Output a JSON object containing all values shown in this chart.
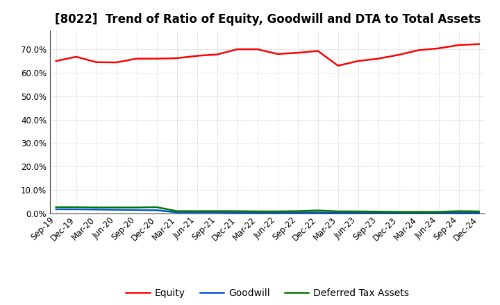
{
  "title": "[8022]  Trend of Ratio of Equity, Goodwill and DTA to Total Assets",
  "x_labels": [
    "Sep-19",
    "Dec-19",
    "Mar-20",
    "Jun-20",
    "Sep-20",
    "Dec-20",
    "Mar-21",
    "Jun-21",
    "Sep-21",
    "Dec-21",
    "Mar-22",
    "Jun-22",
    "Sep-22",
    "Dec-22",
    "Mar-23",
    "Jun-23",
    "Sep-23",
    "Dec-23",
    "Mar-24",
    "Jun-24",
    "Sep-24",
    "Dec-24"
  ],
  "equity": [
    0.65,
    0.668,
    0.645,
    0.644,
    0.66,
    0.66,
    0.662,
    0.672,
    0.678,
    0.7,
    0.7,
    0.68,
    0.685,
    0.693,
    0.63,
    0.65,
    0.66,
    0.676,
    0.696,
    0.704,
    0.718,
    0.722
  ],
  "goodwill": [
    0.018,
    0.018,
    0.017,
    0.016,
    0.015,
    0.014,
    0.005,
    0.005,
    0.005,
    0.004,
    0.004,
    0.004,
    0.004,
    0.004,
    0.003,
    0.003,
    0.003,
    0.003,
    0.003,
    0.003,
    0.003,
    0.003
  ],
  "dta": [
    0.027,
    0.027,
    0.026,
    0.026,
    0.026,
    0.027,
    0.01,
    0.01,
    0.01,
    0.01,
    0.009,
    0.009,
    0.01,
    0.013,
    0.009,
    0.009,
    0.008,
    0.007,
    0.007,
    0.007,
    0.01,
    0.009
  ],
  "equity_color": "#ff0000",
  "goodwill_color": "#0055cc",
  "dta_color": "#007700",
  "background_color": "#ffffff",
  "grid_color": "#888888",
  "ylim": [
    0.0,
    0.78
  ],
  "yticks": [
    0.0,
    0.1,
    0.2,
    0.3,
    0.4,
    0.5,
    0.6,
    0.7
  ],
  "legend_labels": [
    "Equity",
    "Goodwill",
    "Deferred Tax Assets"
  ],
  "title_fontsize": 12,
  "axis_fontsize": 8.5,
  "legend_fontsize": 10,
  "linewidth": 1.8
}
